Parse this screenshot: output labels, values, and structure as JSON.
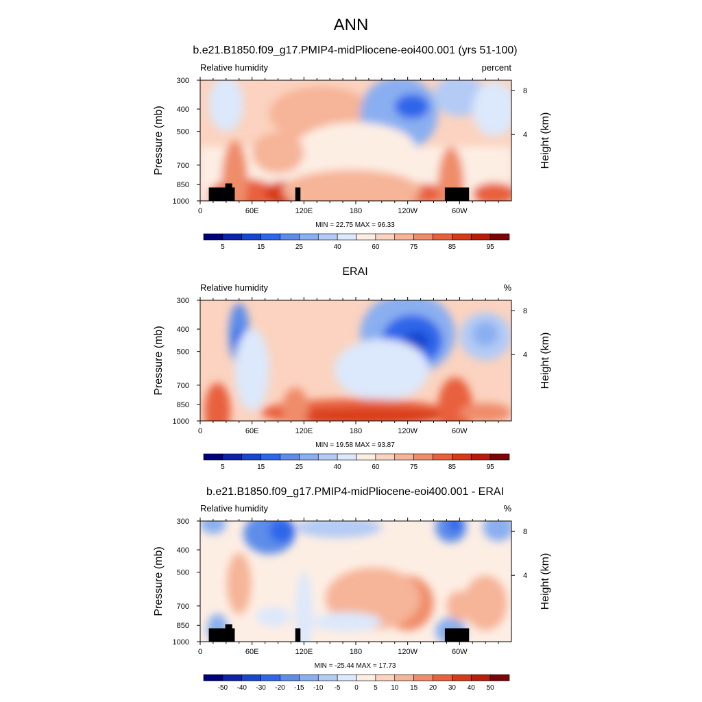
{
  "title": "ANN",
  "colors": {
    "rh_bar": [
      "#00007a",
      "#0c22a8",
      "#1746cf",
      "#2d66ea",
      "#5d8de9",
      "#8aaff0",
      "#b4cbf5",
      "#dce8fb",
      "#fdeee4",
      "#fbd3c0",
      "#f6b498",
      "#ef8c6a",
      "#e8613d",
      "#d83a17",
      "#b91c0a",
      "#7d0505"
    ],
    "diff_bar": [
      "#00007a",
      "#0c22a8",
      "#1746cf",
      "#2d66ea",
      "#5d8de9",
      "#8aaff0",
      "#b4cbf5",
      "#dce8fb",
      "#fdeee4",
      "#fbd3c0",
      "#f6b498",
      "#ef8c6a",
      "#e8613d",
      "#d83a17",
      "#b91c0a",
      "#7d0505"
    ]
  },
  "panels": [
    {
      "title": "b.e21.B1850.f09_g17.PMIP4-midPliocene-eoi400.001 (yrs 51-100)",
      "left_label": "Relative humidity",
      "right_label": "percent",
      "stats": "MIN = 22.75  MAX = 96.33",
      "ylabel": "Pressure (mb)",
      "ylabel_right": "Height (km)",
      "x_ticks": [
        "0",
        "60E",
        "120E",
        "180",
        "120W",
        "60W"
      ],
      "y_ticks": [
        "300",
        "400",
        "500",
        "700",
        "850",
        "1000"
      ],
      "y_right_ticks": [
        "8",
        "4"
      ],
      "colorbar_labels": [
        "5",
        "15",
        "25",
        "40",
        "60",
        "75",
        "85",
        "95"
      ]
    },
    {
      "title": "ERAI",
      "left_label": "Relative humidity",
      "right_label": "%",
      "stats": "MIN = 19.58  MAX = 93.87",
      "ylabel": "Pressure (mb)",
      "ylabel_right": "Height (km)",
      "x_ticks": [
        "0",
        "60E",
        "120E",
        "180",
        "120W",
        "60W"
      ],
      "y_ticks": [
        "300",
        "400",
        "500",
        "700",
        "850",
        "1000"
      ],
      "y_right_ticks": [
        "8",
        "4"
      ],
      "colorbar_labels": [
        "5",
        "15",
        "25",
        "40",
        "60",
        "75",
        "85",
        "95"
      ]
    },
    {
      "title": "b.e21.B1850.f09_g17.PMIP4-midPliocene-eoi400.001 - ERAI",
      "left_label": "Relative humidity",
      "right_label": "%",
      "stats": "MIN = -25.44  MAX = 17.73",
      "ylabel": "Pressure (mb)",
      "ylabel_right": "Height (km)",
      "x_ticks": [
        "0",
        "60E",
        "120E",
        "180",
        "120W",
        "60W"
      ],
      "y_ticks": [
        "300",
        "400",
        "500",
        "700",
        "850",
        "1000"
      ],
      "y_right_ticks": [
        "8",
        "4"
      ],
      "colorbar_labels": [
        "-50",
        "-40",
        "-30",
        "-20",
        "-15",
        "-10",
        "-5",
        "0",
        "5",
        "10",
        "15",
        "20",
        "30",
        "40",
        "50"
      ]
    }
  ],
  "chart_data": [
    {
      "type": "heatmap",
      "title": "b.e21.B1850.f09_g17.PMIP4-midPliocene-eoi400.001 (yrs 51-100)",
      "xlabel": "",
      "ylabel": "Pressure (mb)",
      "xlim": [
        0,
        360
      ],
      "ylim": [
        1000,
        300
      ],
      "x_ticks_deg": [
        0,
        60,
        120,
        180,
        240,
        300
      ],
      "y_ticks": [
        300,
        400,
        500,
        700,
        850,
        1000
      ],
      "levels": [
        5,
        10,
        15,
        20,
        25,
        30,
        40,
        50,
        60,
        65,
        75,
        80,
        85,
        90,
        95
      ],
      "min": 22.75,
      "max": 96.33,
      "units": "percent"
    },
    {
      "type": "heatmap",
      "title": "ERAI",
      "xlabel": "",
      "ylabel": "Pressure (mb)",
      "xlim": [
        0,
        360
      ],
      "ylim": [
        1000,
        300
      ],
      "x_ticks_deg": [
        0,
        60,
        120,
        180,
        240,
        300
      ],
      "y_ticks": [
        300,
        400,
        500,
        700,
        850,
        1000
      ],
      "levels": [
        5,
        10,
        15,
        20,
        25,
        30,
        40,
        50,
        60,
        65,
        75,
        80,
        85,
        90,
        95
      ],
      "min": 19.58,
      "max": 93.87,
      "units": "%"
    },
    {
      "type": "heatmap",
      "title": "b.e21.B1850.f09_g17.PMIP4-midPliocene-eoi400.001 - ERAI",
      "xlabel": "",
      "ylabel": "Pressure (mb)",
      "xlim": [
        0,
        360
      ],
      "ylim": [
        1000,
        300
      ],
      "x_ticks_deg": [
        0,
        60,
        120,
        180,
        240,
        300
      ],
      "y_ticks": [
        300,
        400,
        500,
        700,
        850,
        1000
      ],
      "levels": [
        -50,
        -40,
        -30,
        -20,
        -15,
        -10,
        -5,
        0,
        5,
        10,
        15,
        20,
        30,
        40,
        50
      ],
      "min": -25.44,
      "max": 17.73,
      "units": "%"
    }
  ]
}
